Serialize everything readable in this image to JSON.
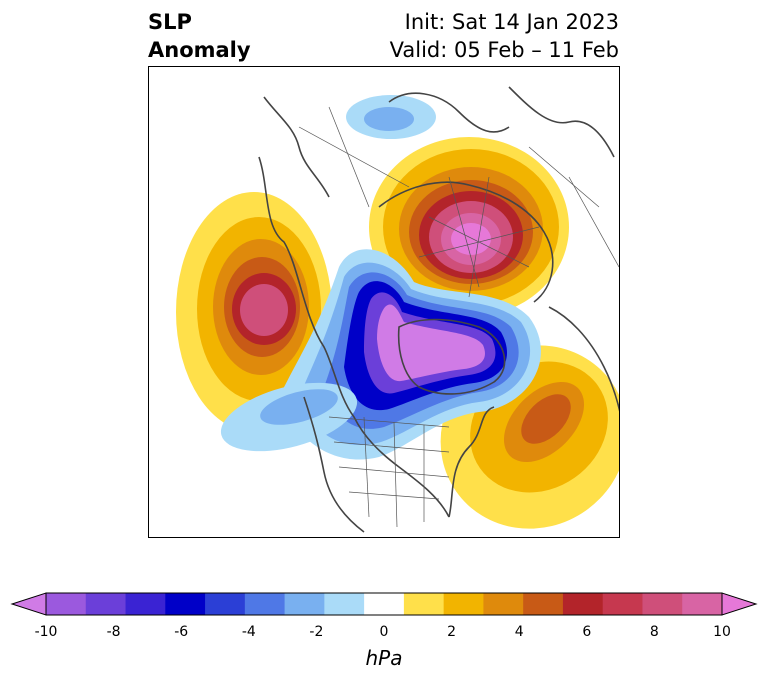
{
  "title": {
    "left_line1": "SLP",
    "left_line2": "Anomaly",
    "init": "Init: Sat 14 Jan 2023",
    "valid": "Valid: 05 Feb – 11 Feb"
  },
  "colorbar": {
    "unit": "hPa",
    "ticks": [
      "-10",
      "-8",
      "-6",
      "-4",
      "-2",
      "0",
      "2",
      "4",
      "6",
      "8",
      "10"
    ],
    "colors": [
      "#d07be6",
      "#9b59de",
      "#6b3fd9",
      "#3a23d3",
      "#0000c8",
      "#2b3fd6",
      "#4f78e6",
      "#79b0f0",
      "#aadbf8",
      "#ffffff",
      "#ffe04a",
      "#f2b400",
      "#df8a0c",
      "#c85a16",
      "#b3242a",
      "#c6384f",
      "#cf4f7a",
      "#d864a4",
      "#e678d8"
    ]
  }
}
